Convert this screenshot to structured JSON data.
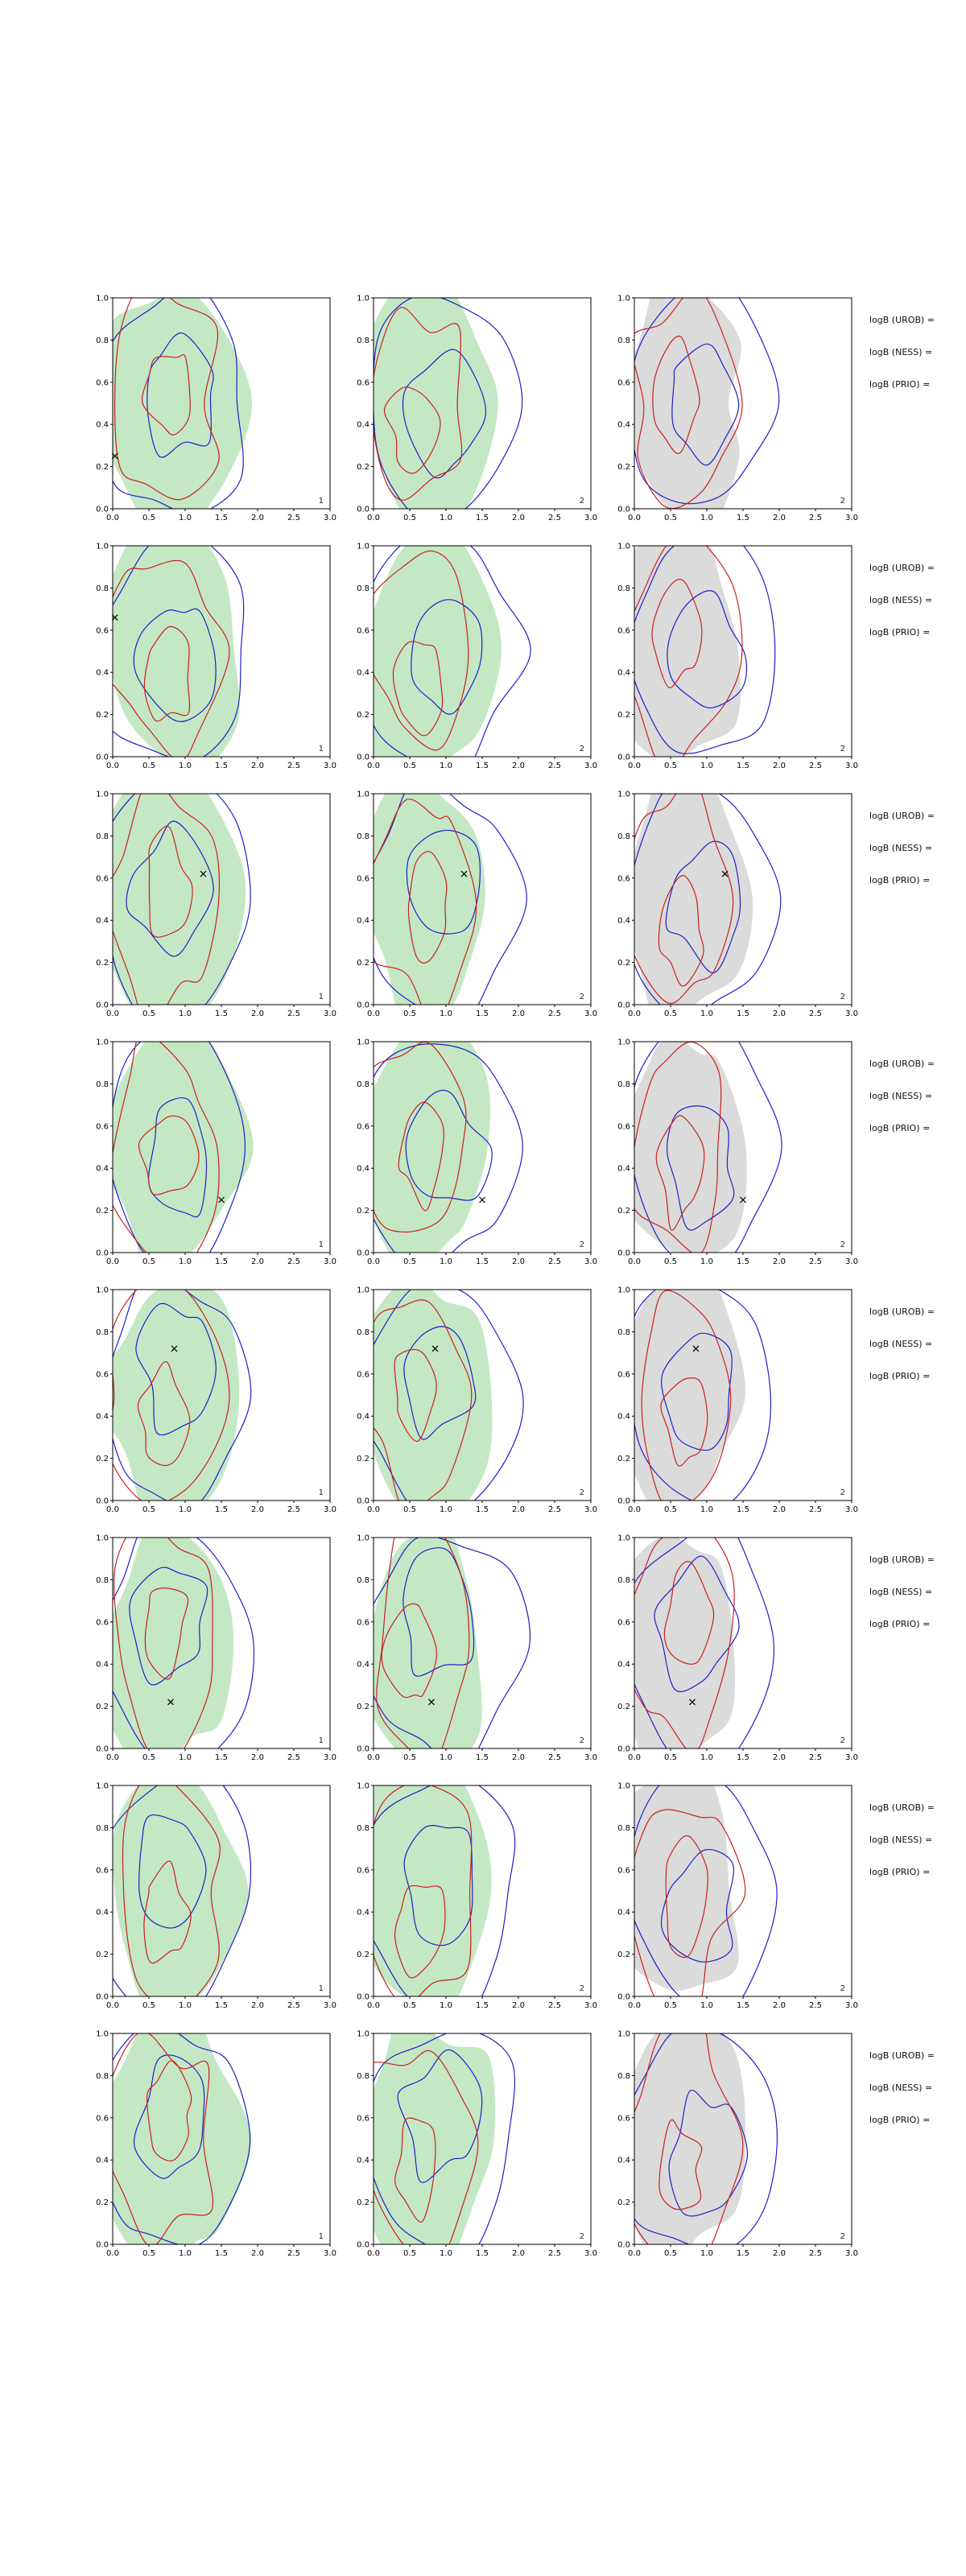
{
  "page": {
    "background": "#ffffff"
  },
  "colors": {
    "blue_contour": "#1f1fc8",
    "red_contour": "#cc2020",
    "green_fill": "#3cb43c",
    "green_fill_opacity": 0.3,
    "gray_fill": "#999999",
    "gray_fill_opacity": 0.35,
    "marker": "#000000",
    "axis": "#000000"
  },
  "axes": {
    "x_ticks": [
      "0.0",
      "0.5",
      "1.0",
      "1.5",
      "2.0",
      "2.5",
      "3.0"
    ],
    "y_ticks": [
      "0.0",
      "0.2",
      "0.4",
      "0.6",
      "0.8",
      "1.0"
    ],
    "x_range": [
      0,
      3
    ],
    "y_range": [
      0,
      1
    ]
  },
  "rows": [
    {
      "labels": [
        "logB (UROB) = ",
        "logB (NESS) = ",
        "logB (PRIO) = "
      ],
      "marker": {
        "x": 0.03,
        "y": 0.25
      },
      "marker_cols": [
        0
      ],
      "panels": [
        {
          "corner": "1",
          "fill": "green",
          "seed": 11
        },
        {
          "corner": "2",
          "fill": "green",
          "seed": 12
        },
        {
          "corner": "2",
          "fill": "gray",
          "seed": 13
        }
      ]
    },
    {
      "labels": [
        "logB (UROB) = ",
        "logB (NESS) = ",
        "logB (PRIO) = "
      ],
      "marker": {
        "x": 0.03,
        "y": 0.66
      },
      "marker_cols": [
        0
      ],
      "panels": [
        {
          "corner": "1",
          "fill": "green",
          "seed": 21
        },
        {
          "corner": "2",
          "fill": "green",
          "seed": 22
        },
        {
          "corner": "2",
          "fill": "gray",
          "seed": 23
        }
      ]
    },
    {
      "labels": [
        "logB (UROB) = ",
        "logB (NESS) = ",
        "logB (PRIO) = "
      ],
      "marker": {
        "x": 1.25,
        "y": 0.62
      },
      "marker_cols": [
        0,
        1,
        2
      ],
      "panels": [
        {
          "corner": "1",
          "fill": "green",
          "seed": 31
        },
        {
          "corner": "2",
          "fill": "green",
          "seed": 32
        },
        {
          "corner": "2",
          "fill": "gray",
          "seed": 33
        }
      ]
    },
    {
      "labels": [
        "logB (UROB) = ",
        "logB (NESS) = ",
        "logB (PRIO) = "
      ],
      "marker": {
        "x": 1.5,
        "y": 0.25
      },
      "marker_cols": [
        0,
        1,
        2
      ],
      "panels": [
        {
          "corner": "1",
          "fill": "green",
          "seed": 41
        },
        {
          "corner": "2",
          "fill": "green",
          "seed": 42
        },
        {
          "corner": "2",
          "fill": "gray",
          "seed": 43
        }
      ]
    },
    {
      "labels": [
        "logB (UROB) = ",
        "logB (NESS) = ",
        "logB (PRIO) = "
      ],
      "marker": {
        "x": 0.85,
        "y": 0.72
      },
      "marker_cols": [
        0,
        1,
        2
      ],
      "panels": [
        {
          "corner": "1",
          "fill": "green",
          "seed": 51
        },
        {
          "corner": "2",
          "fill": "green",
          "seed": 52
        },
        {
          "corner": "2",
          "fill": "gray",
          "seed": 53
        }
      ]
    },
    {
      "labels": [
        "logB (UROB) = ",
        "logB (NESS) = ",
        "logB (PRIO) = "
      ],
      "marker": {
        "x": 0.8,
        "y": 0.22
      },
      "marker_cols": [
        0,
        1,
        2
      ],
      "panels": [
        {
          "corner": "1",
          "fill": "green",
          "seed": 61
        },
        {
          "corner": "2",
          "fill": "green",
          "seed": 62
        },
        {
          "corner": "2",
          "fill": "gray",
          "seed": 63
        }
      ]
    },
    {
      "labels": [
        "logB (UROB) = ",
        "logB (NESS) = ",
        "logB (PRIO) = "
      ],
      "marker": null,
      "marker_cols": [],
      "panels": [
        {
          "corner": "1",
          "fill": "green",
          "seed": 71
        },
        {
          "corner": "2",
          "fill": "green",
          "seed": 72
        },
        {
          "corner": "2",
          "fill": "gray",
          "seed": 73
        }
      ]
    },
    {
      "labels": [
        "logB (UROB) = ",
        "logB (NESS) = ",
        "logB (PRIO) = "
      ],
      "marker": null,
      "marker_cols": [],
      "panels": [
        {
          "corner": "1",
          "fill": "green",
          "seed": 81
        },
        {
          "corner": "2",
          "fill": "green",
          "seed": 82
        },
        {
          "corner": "2",
          "fill": "gray",
          "seed": 83
        }
      ]
    }
  ],
  "chart_data": {
    "type": "contour",
    "grid": {
      "rows": 8,
      "cols": 3
    },
    "x_range": [
      0,
      3
    ],
    "y_range": [
      0,
      1
    ],
    "x_ticks": [
      0,
      0.5,
      1.0,
      1.5,
      2.0,
      2.5,
      3.0
    ],
    "y_ticks": [
      0,
      0.2,
      0.4,
      0.6,
      0.8,
      1.0
    ],
    "panel_corner_labels": [
      [
        "1",
        "2",
        "2"
      ],
      [
        "1",
        "2",
        "2"
      ],
      [
        "1",
        "2",
        "2"
      ],
      [
        "1",
        "2",
        "2"
      ],
      [
        "1",
        "2",
        "2"
      ],
      [
        "1",
        "2",
        "2"
      ],
      [
        "1",
        "2",
        "2"
      ],
      [
        "1",
        "2",
        "2"
      ]
    ],
    "series": [
      {
        "name": "blue-contour",
        "style": "line",
        "color": "#1f1fc8"
      },
      {
        "name": "red-contour",
        "style": "line",
        "color": "#cc2020"
      },
      {
        "name": "shaded-density",
        "style": "filled",
        "color_cols_1_2": "green",
        "color_col_3": "gray"
      }
    ],
    "markers": [
      {
        "row": 1,
        "symbol": "x",
        "x": 0.03,
        "y": 0.25,
        "cols": [
          1
        ]
      },
      {
        "row": 2,
        "symbol": "x",
        "x": 0.03,
        "y": 0.66,
        "cols": [
          1
        ]
      },
      {
        "row": 3,
        "symbol": "x",
        "x": 1.25,
        "y": 0.62,
        "cols": [
          1,
          2,
          3
        ]
      },
      {
        "row": 4,
        "symbol": "x",
        "x": 1.5,
        "y": 0.25,
        "cols": [
          1,
          2,
          3
        ]
      },
      {
        "row": 5,
        "symbol": "x",
        "x": 0.85,
        "y": 0.72,
        "cols": [
          1,
          2,
          3
        ]
      },
      {
        "row": 6,
        "symbol": "x",
        "x": 0.8,
        "y": 0.22,
        "cols": [
          1,
          2,
          3
        ]
      },
      {
        "row": 7,
        "symbol": null
      },
      {
        "row": 8,
        "symbol": null
      }
    ],
    "row_annotations": [
      [
        "logB (UROB) = ",
        "logB (NESS) = ",
        "logB (PRIO) = "
      ],
      [
        "logB (UROB) = ",
        "logB (NESS) = ",
        "logB (PRIO) = "
      ],
      [
        "logB (UROB) = ",
        "logB (NESS) = ",
        "logB (PRIO) = "
      ],
      [
        "logB (UROB) = ",
        "logB (NESS) = ",
        "logB (PRIO) = "
      ],
      [
        "logB (UROB) = ",
        "logB (NESS) = ",
        "logB (PRIO) = "
      ],
      [
        "logB (UROB) = ",
        "logB (NESS) = ",
        "logB (PRIO) = "
      ],
      [
        "logB (UROB) = ",
        "logB (NESS) = ",
        "logB (PRIO) = "
      ],
      [
        "logB (UROB) = ",
        "logB (NESS) = ",
        "logB (PRIO) = "
      ]
    ],
    "notes": "8x3 grid of 2D KDE-style contour panels; columns 1-2 green shaded density, column 3 gray shaded density; blue and red nested contour lines in every panel; right-side logB annotations truncated at figure edge."
  }
}
